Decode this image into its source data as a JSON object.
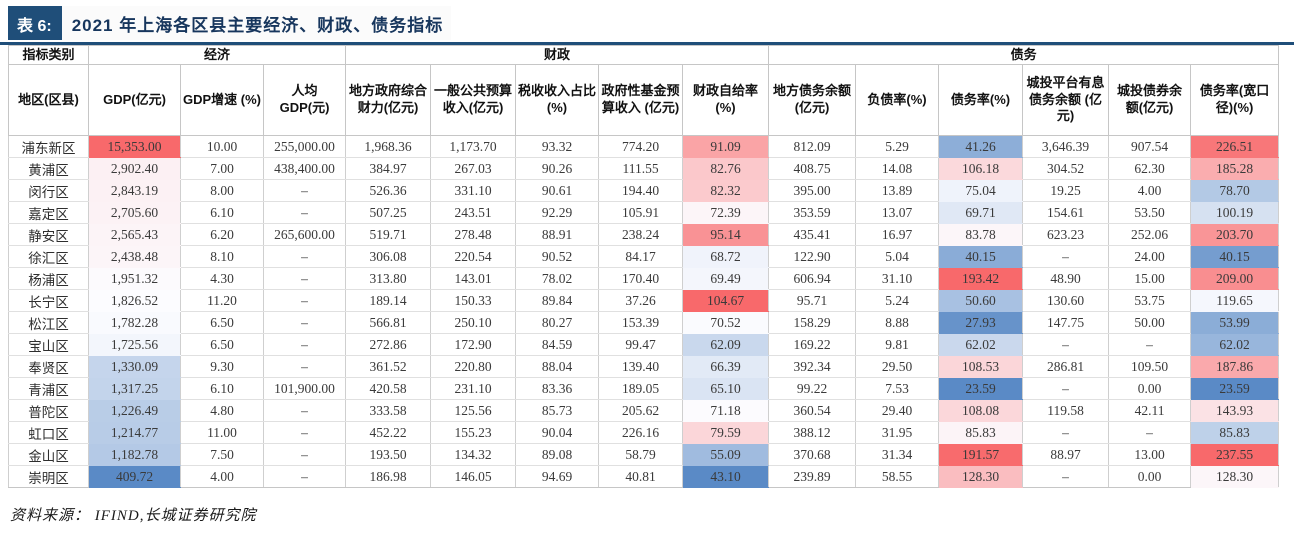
{
  "title": {
    "tag": "表 6:",
    "text": "2021 年上海各区县主要经济、财政、债务指标",
    "accent_color": "#1F4E79",
    "text_color": "#17365D"
  },
  "footer": {
    "source": "资料来源： IFIND,长城证券研究院"
  },
  "table": {
    "category_label": "指标类别",
    "region_label": "地区(区县)",
    "groups": [
      {
        "label": "经济",
        "span": 3
      },
      {
        "label": "财政",
        "span": 5
      },
      {
        "label": "债务",
        "span": 6
      }
    ],
    "columns": [
      "GDP(亿元)",
      "GDP增速 (%)",
      "人均 GDP(元)",
      "地方政府综合财力(亿元)",
      "一般公共预算收入(亿元)",
      "税收收入占比(%)",
      "政府性基金预算收入 (亿元)",
      "财政自给率 (%)",
      "地方债务余额(亿元)",
      "负债率(%)",
      "债务率(%)",
      "城投平台有息债务余额 (亿元)",
      "城投债券余额(亿元)",
      "债务率(宽口径)(%)"
    ],
    "color_scale": {
      "columns": [
        0,
        7,
        10,
        13
      ],
      "min_color": "#5A8AC6",
      "mid_color": "#FCFCFF",
      "max_color": "#F8696B"
    },
    "rows": [
      {
        "region": "浦东新区",
        "values": [
          "15,353.00",
          "10.00",
          "255,000.00",
          "1,968.36",
          "1,173.70",
          "93.32",
          "774.20",
          "91.09",
          "812.09",
          "5.29",
          "41.26",
          "3,646.39",
          "907.54",
          "226.51"
        ]
      },
      {
        "region": "黄浦区",
        "values": [
          "2,902.40",
          "7.00",
          "438,400.00",
          "384.97",
          "267.03",
          "90.26",
          "111.55",
          "82.76",
          "408.75",
          "14.08",
          "106.18",
          "304.52",
          "62.30",
          "185.28"
        ]
      },
      {
        "region": "闵行区",
        "values": [
          "2,843.19",
          "8.00",
          "–",
          "526.36",
          "331.10",
          "90.61",
          "194.40",
          "82.32",
          "395.00",
          "13.89",
          "75.04",
          "19.25",
          "4.00",
          "78.70"
        ]
      },
      {
        "region": "嘉定区",
        "values": [
          "2,705.60",
          "6.10",
          "–",
          "507.25",
          "243.51",
          "92.29",
          "105.91",
          "72.39",
          "353.59",
          "13.07",
          "69.71",
          "154.61",
          "53.50",
          "100.19"
        ]
      },
      {
        "region": "静安区",
        "values": [
          "2,565.43",
          "6.20",
          "265,600.00",
          "519.71",
          "278.48",
          "88.91",
          "238.24",
          "95.14",
          "435.41",
          "16.97",
          "83.78",
          "623.23",
          "252.06",
          "203.70"
        ]
      },
      {
        "region": "徐汇区",
        "values": [
          "2,438.48",
          "8.10",
          "–",
          "306.08",
          "220.54",
          "90.52",
          "84.17",
          "68.72",
          "122.90",
          "5.04",
          "40.15",
          "–",
          "24.00",
          "40.15"
        ]
      },
      {
        "region": "杨浦区",
        "values": [
          "1,951.32",
          "4.30",
          "–",
          "313.80",
          "143.01",
          "78.02",
          "170.40",
          "69.49",
          "606.94",
          "31.10",
          "193.42",
          "48.90",
          "15.00",
          "209.00"
        ]
      },
      {
        "region": "长宁区",
        "values": [
          "1,826.52",
          "11.20",
          "–",
          "189.14",
          "150.33",
          "89.84",
          "37.26",
          "104.67",
          "95.71",
          "5.24",
          "50.60",
          "130.60",
          "53.75",
          "119.65"
        ]
      },
      {
        "region": "松江区",
        "values": [
          "1,782.28",
          "6.50",
          "–",
          "566.81",
          "250.10",
          "80.27",
          "153.39",
          "70.52",
          "158.29",
          "8.88",
          "27.93",
          "147.75",
          "50.00",
          "53.99"
        ]
      },
      {
        "region": "宝山区",
        "values": [
          "1,725.56",
          "6.50",
          "–",
          "272.86",
          "172.90",
          "84.59",
          "99.47",
          "62.09",
          "169.22",
          "9.81",
          "62.02",
          "–",
          "–",
          "62.02"
        ]
      },
      {
        "region": "奉贤区",
        "values": [
          "1,330.09",
          "9.30",
          "–",
          "361.52",
          "220.80",
          "88.04",
          "139.40",
          "66.39",
          "392.34",
          "29.50",
          "108.53",
          "286.81",
          "109.50",
          "187.86"
        ]
      },
      {
        "region": "青浦区",
        "values": [
          "1,317.25",
          "6.10",
          "101,900.00",
          "420.58",
          "231.10",
          "83.36",
          "189.05",
          "65.10",
          "99.22",
          "7.53",
          "23.59",
          "–",
          "0.00",
          "23.59"
        ]
      },
      {
        "region": "普陀区",
        "values": [
          "1,226.49",
          "4.80",
          "–",
          "333.58",
          "125.56",
          "85.73",
          "205.62",
          "71.18",
          "360.54",
          "29.40",
          "108.08",
          "119.58",
          "42.11",
          "143.93"
        ]
      },
      {
        "region": "虹口区",
        "values": [
          "1,214.77",
          "11.00",
          "–",
          "452.22",
          "155.23",
          "90.04",
          "226.16",
          "79.59",
          "388.12",
          "31.95",
          "85.83",
          "–",
          "–",
          "85.83"
        ]
      },
      {
        "region": "金山区",
        "values": [
          "1,182.78",
          "7.50",
          "–",
          "193.50",
          "134.32",
          "89.08",
          "58.79",
          "55.09",
          "370.68",
          "31.34",
          "191.57",
          "88.97",
          "13.00",
          "237.55"
        ]
      },
      {
        "region": "崇明区",
        "values": [
          "409.72",
          "4.00",
          "–",
          "186.98",
          "146.05",
          "94.69",
          "40.81",
          "43.10",
          "239.89",
          "58.55",
          "128.30",
          "–",
          "0.00",
          "128.30"
        ]
      }
    ]
  }
}
